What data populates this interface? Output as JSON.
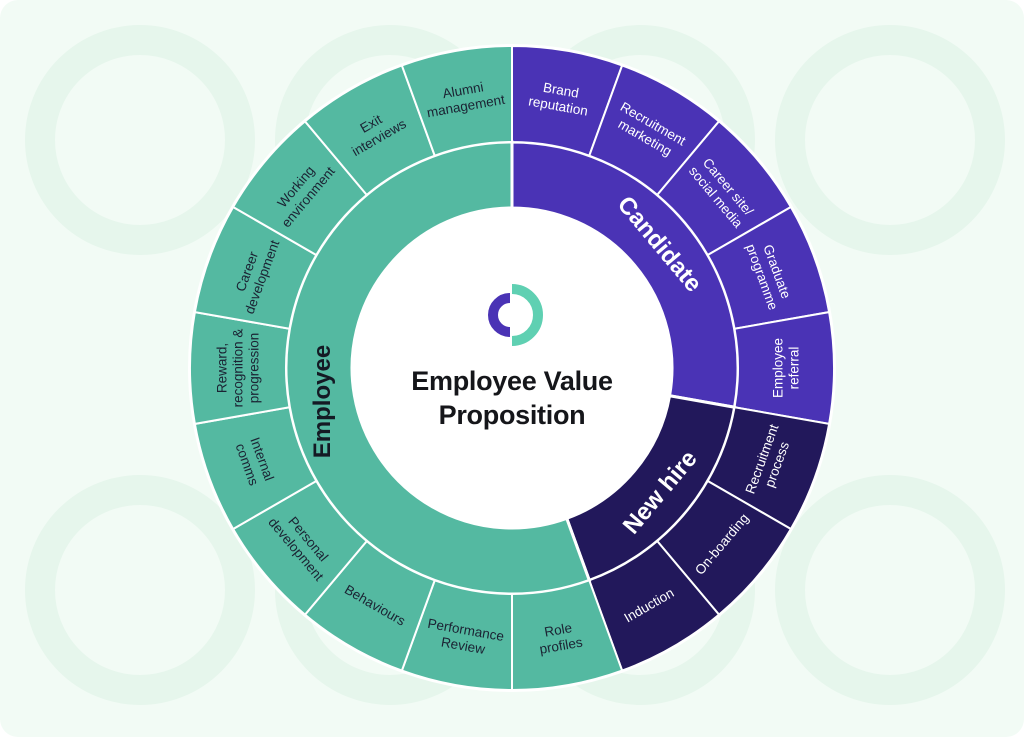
{
  "title_lines": [
    "Employee Value",
    "Proposition"
  ],
  "colors": {
    "background": "#f2fbf5",
    "employee": "#54b9a1",
    "candidate": "#4a33b5",
    "new_hire": "#22185b",
    "logo_purple": "#4a33b5",
    "logo_teal": "#5fd0b2"
  },
  "groups": [
    {
      "name": "Candidate",
      "color_key": "candidate",
      "text_color": "#ffffff",
      "items": [
        "Brand reputation",
        "Recruitment marketing",
        "Career site/ social media",
        "Graduate programme",
        "Employee referral"
      ]
    },
    {
      "name": "New hire",
      "color_key": "new_hire",
      "text_color": "#ffffff",
      "items": [
        "Recruitment process",
        "On-boarding",
        "Induction"
      ]
    },
    {
      "name": "Employee",
      "color_key": "employee",
      "text_color": "#1b2333",
      "items": [
        "Role profiles",
        "Performance Review",
        "Behaviours",
        "Personal development",
        "Internal comms",
        "Reward, recognition & progression",
        "Career development",
        "Working environment",
        "Exit interviews",
        "Alumni management"
      ]
    }
  ]
}
